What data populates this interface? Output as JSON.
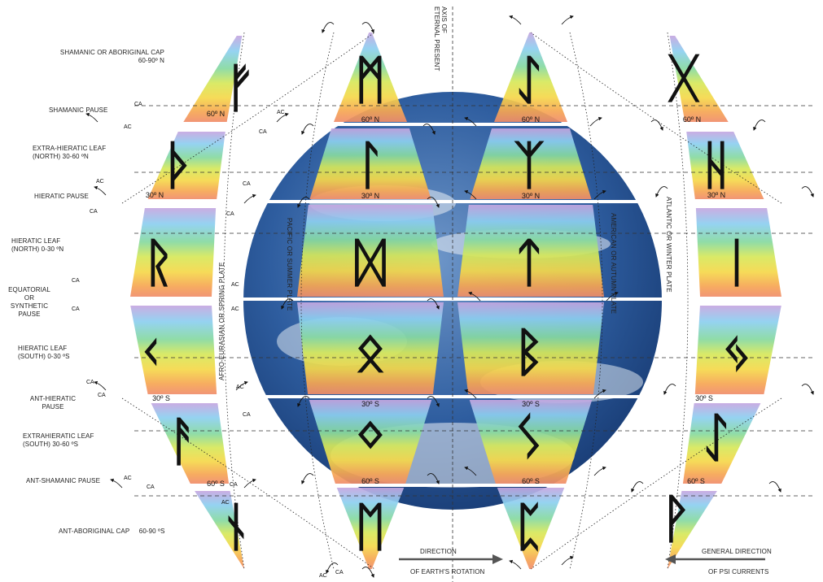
{
  "colors": {
    "spectrum": [
      "#b58fd6",
      "#7fc8f0",
      "#7fd69a",
      "#c8e35a",
      "#f3e04a",
      "#f7b24a",
      "#f28a5a"
    ],
    "rune": "#111111",
    "globe_ocean": "#2d5b9e",
    "axis_line": "#333333"
  },
  "left_labels": [
    "SHAMANIC OR ABORIGINAL CAP\n60-90º N",
    "SHAMANIC PAUSE",
    "EXTRA-HIERATIC LEAF\n(NORTH) 30-60 ºN",
    "HIERATIC PAUSE",
    "HIERATIC LEAF\n(NORTH) 0-30 ºN",
    "EQUATORIAL\nOR\nSYNTHETIC\nPAUSE",
    "HIERATIC LEAF\n(SOUTH) 0-30 ºS",
    "ANT-HIERATIC\nPAUSE",
    "EXTRAHIERATIC LEAF\n(SOUTH) 30-60 ºS",
    "ANT-SHAMANIC PAUSE",
    "ANT-ABORIGINAL CAP     60-90 ºS"
  ],
  "plate_labels": {
    "spring": "AFRO-EURASIAN   OR SPRING PLATE",
    "summer": "PACIFIC OR SUMMER PLATE",
    "autumn": "AMERICAN OR AUTUMN PLATE",
    "winter": "ATLANTIC OR   WINTER PLATE"
  },
  "axis_label": "AXIS OF\nETERNAL PRESENT",
  "lat_labels": [
    "60º N",
    "30º N",
    "30º S",
    "60º S"
  ],
  "current_labels": {
    "ac": "AC",
    "ca": "CA"
  },
  "earth_rotation": {
    "top": "DIRECTION",
    "bottom": "OF EARTH'S ROTATION"
  },
  "psi_currents": {
    "top": "GENERAL DIRECTION",
    "bottom": "OF PSI CURRENTS"
  },
  "runes": [
    {
      "name": "fehu",
      "glyph": "ᚠ"
    },
    {
      "name": "mannaz",
      "glyph": "ᛗ"
    },
    {
      "name": "laguz-inverted",
      "glyph": "ᛇ"
    },
    {
      "name": "gebo",
      "glyph": "ᚷ"
    },
    {
      "name": "thurisaz",
      "glyph": "ᚦ"
    },
    {
      "name": "laguz",
      "glyph": "ᛚ"
    },
    {
      "name": "algiz",
      "glyph": "ᛉ"
    },
    {
      "name": "hagalaz",
      "glyph": "ᚺ"
    },
    {
      "name": "raido",
      "glyph": "ᚱ"
    },
    {
      "name": "dagaz",
      "glyph": "ᛞ"
    },
    {
      "name": "tiwaz",
      "glyph": "ᛏ"
    },
    {
      "name": "isa",
      "glyph": "ᛁ"
    },
    {
      "name": "kenaz",
      "glyph": "ᚲ"
    },
    {
      "name": "othala",
      "glyph": "ᛟ"
    },
    {
      "name": "berkano",
      "glyph": "ᛒ"
    },
    {
      "name": "jera",
      "glyph": "ᛃ"
    },
    {
      "name": "ansuz",
      "glyph": "ᚨ"
    },
    {
      "name": "ingwaz",
      "glyph": "ᛜ"
    },
    {
      "name": "sowilo",
      "glyph": "ᛊ"
    },
    {
      "name": "eihwaz",
      "glyph": "ᛇ"
    },
    {
      "name": "naudiz",
      "glyph": "ᚾ"
    },
    {
      "name": "ehwaz",
      "glyph": "ᛖ"
    },
    {
      "name": "perthro",
      "glyph": "ᛈ"
    },
    {
      "name": "wunjo",
      "glyph": "ᚹ"
    }
  ]
}
